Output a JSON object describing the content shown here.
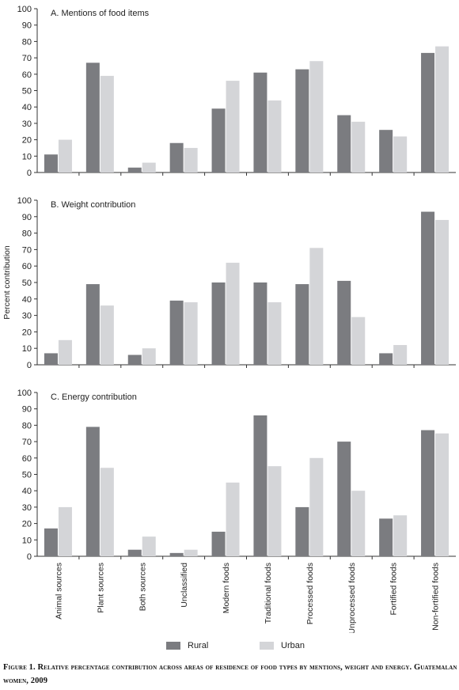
{
  "chart_data": {
    "type": "bar",
    "ylabel": "Percent contribution",
    "categories": [
      "Animal sources",
      "Plant sources",
      "Both sources",
      "Unclassified",
      "Modern foods",
      "Traditional foods",
      "Processed foods",
      "Unprocessed foods",
      "Fortified foods",
      "Non-fortified foods"
    ],
    "ylim": [
      0,
      100
    ],
    "yticks": [
      0,
      10,
      20,
      30,
      40,
      50,
      60,
      70,
      80,
      90,
      100
    ],
    "legend": [
      {
        "name": "Rural",
        "color": "#7b7c80"
      },
      {
        "name": "Urban",
        "color": "#d4d5d8"
      }
    ],
    "legend_position": "bottom",
    "panels": [
      {
        "title": "A. Mentions of food items",
        "series": [
          {
            "name": "Rural",
            "values": [
              11,
              67,
              3,
              18,
              39,
              61,
              63,
              35,
              26,
              73
            ]
          },
          {
            "name": "Urban",
            "values": [
              20,
              59,
              6,
              15,
              56,
              44,
              68,
              31,
              22,
              77
            ]
          }
        ]
      },
      {
        "title": "B. Weight contribution",
        "series": [
          {
            "name": "Rural",
            "values": [
              7,
              49,
              6,
              39,
              50,
              50,
              49,
              51,
              7,
              93
            ]
          },
          {
            "name": "Urban",
            "values": [
              15,
              36,
              10,
              38,
              62,
              38,
              71,
              29,
              12,
              88
            ]
          }
        ]
      },
      {
        "title": "C. Energy contribution",
        "series": [
          {
            "name": "Rural",
            "values": [
              17,
              79,
              4,
              2,
              15,
              86,
              30,
              70,
              23,
              77
            ]
          },
          {
            "name": "Urban",
            "values": [
              30,
              54,
              12,
              4,
              45,
              55,
              60,
              40,
              25,
              75
            ]
          }
        ]
      }
    ]
  },
  "caption": "Figure 1. Relative percentage contribution across areas of residence of food types by mentions, weight and energy. Guatemalan women, 2009"
}
